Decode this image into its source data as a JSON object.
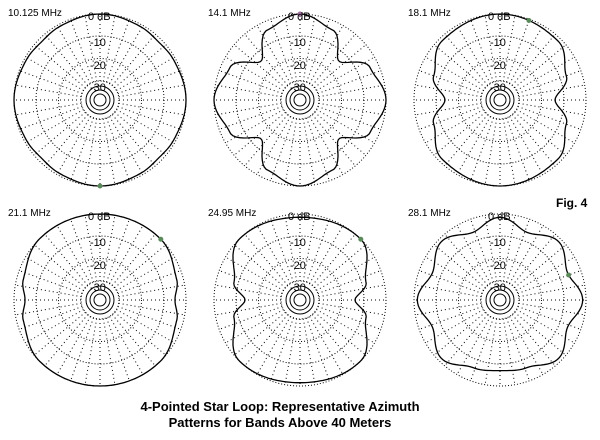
{
  "figure_label": "Fig. 4",
  "caption_line1": "4-Pointed Star Loop:  Representative Azimuth",
  "caption_line2": "Patterns for Bands Above 40 Meters",
  "colors": {
    "pattern_line": "#000000",
    "grid": "#000000",
    "marker": "#5a8a5a",
    "marker_top": "#9b6b9b"
  },
  "chart_data": [
    {
      "type": "polar",
      "freq_label": "10.125 MHz",
      "ring_labels": [
        "0 dB",
        "-10",
        "-20",
        "-30"
      ],
      "rlim_db": [
        -40,
        0
      ],
      "marker_angle_deg": 180,
      "azimuth_deg": [
        0,
        30,
        45,
        60,
        90,
        120,
        135,
        150,
        180,
        210,
        225,
        240,
        270,
        300,
        315,
        330
      ],
      "gain_db": [
        0,
        -1,
        -1.6,
        -1,
        0,
        -1,
        -1.6,
        -1,
        0,
        -1,
        -1.6,
        -1,
        0,
        -1,
        -1.6,
        -1
      ]
    },
    {
      "type": "polar",
      "freq_label": "14.1 MHz",
      "ring_labels": [
        "0 dB",
        "-10",
        "-20",
        "-30"
      ],
      "rlim_db": [
        -40,
        0
      ],
      "marker_angle_deg": 0,
      "azimuth_deg": [
        0,
        25,
        45,
        65,
        90,
        115,
        135,
        155,
        180,
        205,
        225,
        245,
        270,
        295,
        315,
        335
      ],
      "gain_db": [
        0,
        -4,
        -14,
        -4,
        0,
        -4,
        -14,
        -4,
        0,
        -4,
        -14,
        -4,
        0,
        -4,
        -14,
        -4
      ]
    },
    {
      "type": "polar",
      "freq_label": "18.1 MHz",
      "ring_labels": [
        "0 dB",
        "-10",
        "-20",
        "-30"
      ],
      "rlim_db": [
        -40,
        0
      ],
      "marker_angle_deg": 20,
      "azimuth_deg": [
        0,
        45,
        70,
        90,
        110,
        135,
        180,
        225,
        250,
        270,
        290,
        315
      ],
      "gain_db": [
        0,
        -1.5,
        -7,
        -14,
        -7,
        -1.5,
        0,
        -1.5,
        -7,
        -14,
        -7,
        -1.5
      ]
    },
    {
      "type": "polar",
      "freq_label": "21.1 MHz",
      "ring_labels": [
        "0 dB",
        "-10",
        "-20",
        "-30"
      ],
      "rlim_db": [
        -40,
        0
      ],
      "marker_angle_deg": 45,
      "azimuth_deg": [
        0,
        45,
        75,
        90,
        105,
        135,
        180,
        225,
        255,
        270,
        285,
        315
      ],
      "gain_db": [
        0,
        0,
        -3,
        -5,
        -3,
        0,
        0,
        0,
        -3,
        -5,
        -3,
        0
      ]
    },
    {
      "type": "polar",
      "freq_label": "24.95 MHz",
      "ring_labels": [
        "0 dB",
        "-10",
        "-20",
        "-30"
      ],
      "rlim_db": [
        -40,
        0
      ],
      "marker_angle_deg": 45,
      "azimuth_deg": [
        0,
        45,
        75,
        90,
        105,
        135,
        180,
        225,
        255,
        270,
        285,
        315
      ],
      "gain_db": [
        -1.5,
        0,
        -8,
        -14,
        -8,
        0,
        -1.5,
        0,
        -8,
        -14,
        -8,
        0
      ]
    },
    {
      "type": "polar",
      "freq_label": "28.1 MHz",
      "ring_labels": [
        "0 dB",
        "-10",
        "-20",
        "-30"
      ],
      "rlim_db": [
        -40,
        0
      ],
      "marker_angle_deg": 70,
      "azimuth_deg": [
        0,
        22,
        45,
        68,
        90,
        112,
        135,
        158,
        180,
        202,
        225,
        248,
        270,
        292,
        315,
        338
      ],
      "gain_db": [
        -1.5,
        -6,
        -1.5,
        -6,
        -1.5,
        -6,
        -1.5,
        -6,
        -7,
        -6,
        -1.5,
        -6,
        -1.5,
        -6,
        -1.5,
        -6
      ]
    }
  ]
}
